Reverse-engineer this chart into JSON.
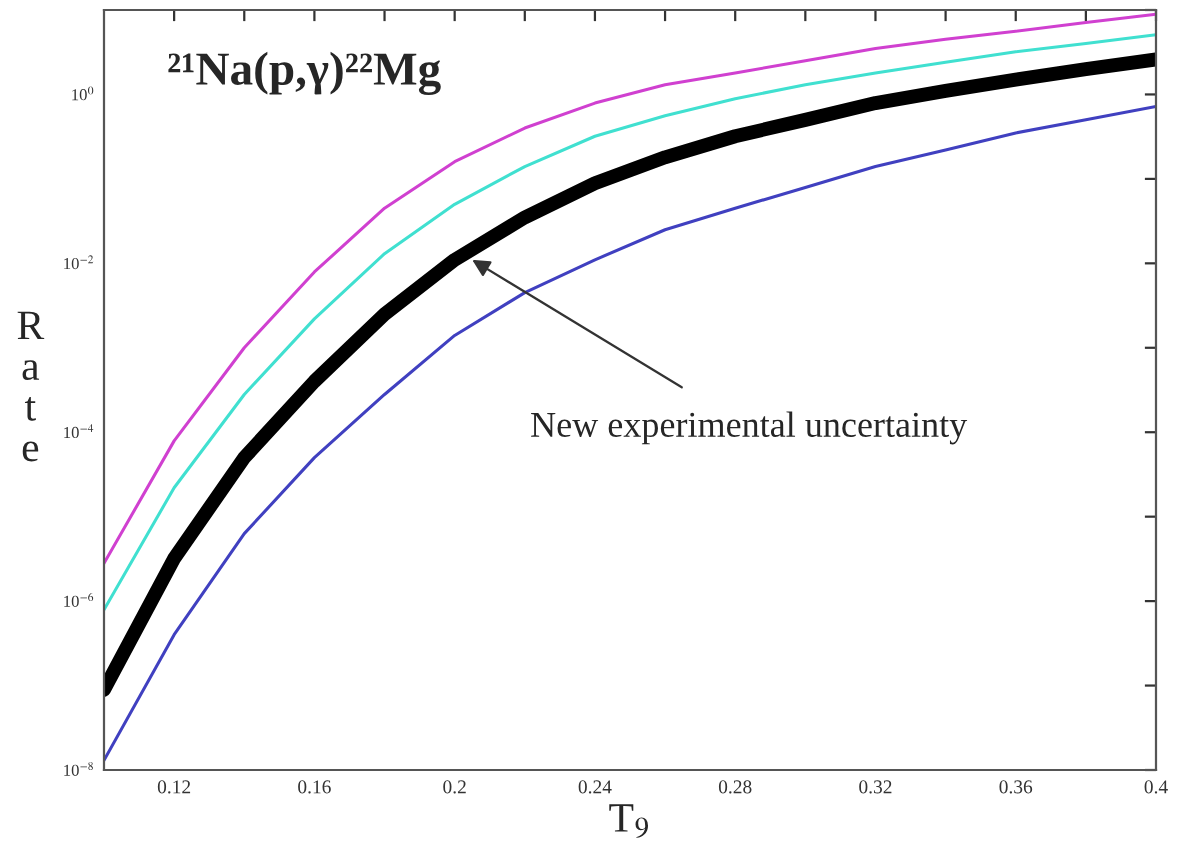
{
  "chart_data": {
    "type": "line",
    "title": "²¹Na(p,γ)²²Mg",
    "xlabel": "T$_{9}$",
    "ylabel": "Rate",
    "log": "y",
    "x": [
      0.1,
      0.12,
      0.14,
      0.16,
      0.18,
      0.2,
      0.22,
      0.24,
      0.26,
      0.28,
      0.3,
      0.32,
      0.34,
      0.36,
      0.38,
      0.4
    ],
    "series": [
      {
        "color": "#d040d0",
        "values": [
          2.8e-06,
          7.9e-05,
          0.001,
          0.0079,
          0.045,
          0.16,
          0.4,
          0.79,
          1.3,
          1.8,
          2.5,
          3.5,
          4.5,
          5.6,
          7.1,
          8.9
        ]
      },
      {
        "color": "#40e0d0",
        "values": [
          7.9e-07,
          2.2e-05,
          0.00028,
          0.0022,
          0.013,
          0.05,
          0.14,
          0.32,
          0.56,
          0.89,
          1.3,
          1.8,
          2.4,
          3.2,
          4.0,
          5.1
        ]
      },
      {
        "color": "#000000",
        "values": [
          8.9e-08,
          3.2e-06,
          5e-05,
          0.0004,
          0.0025,
          0.011,
          0.035,
          0.089,
          0.18,
          0.32,
          0.5,
          0.79,
          1.1,
          1.5,
          2.0,
          2.6
        ]
      },
      {
        "color": "#4040c0",
        "values": [
          1.3e-08,
          4e-07,
          6.3e-06,
          5e-05,
          0.00028,
          0.0014,
          0.0045,
          0.011,
          0.025,
          0.045,
          0.079,
          0.14,
          0.22,
          0.35,
          0.5,
          0.72
        ]
      }
    ],
    "xlim": [
      0.1,
      0.4
    ],
    "xticks": [
      {
        "value": 0.12,
        "label": "0.12"
      },
      {
        "value": 0.14,
        "label": null
      },
      {
        "value": 0.16,
        "label": "0.16"
      },
      {
        "value": 0.18,
        "label": null
      },
      {
        "value": 0.2,
        "label": "0.2"
      },
      {
        "value": 0.22,
        "label": null
      },
      {
        "value": 0.24,
        "label": "0.24"
      },
      {
        "value": 0.26,
        "label": null
      },
      {
        "value": 0.28,
        "label": "0.28"
      },
      {
        "value": 0.3,
        "label": null
      },
      {
        "value": 0.32,
        "label": "0.32"
      },
      {
        "value": 0.34,
        "label": null
      },
      {
        "value": 0.36,
        "label": "0.36"
      },
      {
        "value": 0.38,
        "label": null
      },
      {
        "value": 0.4,
        "label": "0.4"
      }
    ],
    "ylim": [
      1e-08,
      10
    ],
    "yticks": [
      {
        "value": 1e-08,
        "label": "10$^{−8}$"
      },
      {
        "value": 1e-07,
        "label": null
      },
      {
        "value": 1e-06,
        "label": "10$^{−6}$"
      },
      {
        "value": 1e-05,
        "label": null
      },
      {
        "value": 0.0001,
        "label": "10$^{−4}$"
      },
      {
        "value": 0.001,
        "label": null
      },
      {
        "value": 0.01,
        "label": "10$^{−2}$"
      },
      {
        "value": 0.1,
        "label": null
      },
      {
        "value": 1,
        "label": "10$^{0}$"
      },
      {
        "value": 10,
        "label": null
      }
    ],
    "annotations": [
      {
        "text": "New experimental uncertainty",
        "x": 0.205,
        "y": 0.011
      }
    ],
    "grid": false,
    "legend": false,
    "marker": "none",
    "line_style": "solid"
  }
}
